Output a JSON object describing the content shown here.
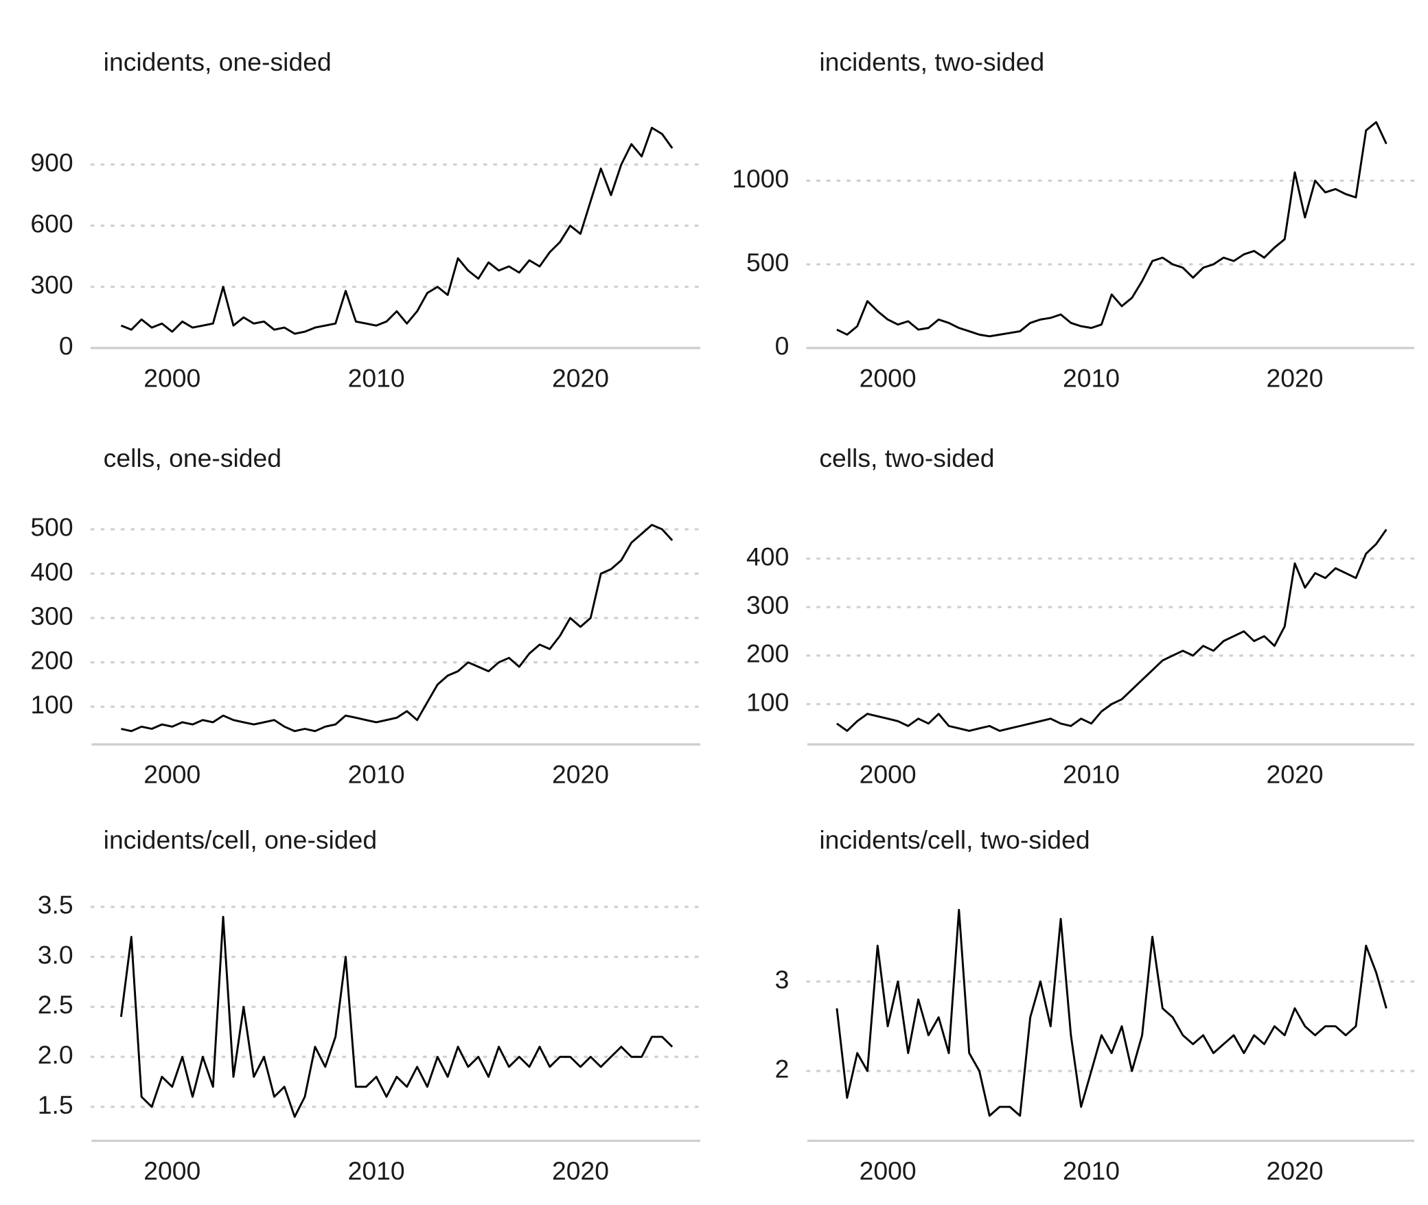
{
  "chart_data": [
    {
      "type": "line",
      "title": "incidents, one-sided",
      "color": "#000000",
      "grid": true,
      "x": [
        1997.5,
        1998,
        1998.5,
        1999,
        1999.5,
        2000,
        2000.5,
        2001,
        2001.5,
        2002,
        2002.5,
        2003,
        2003.5,
        2004,
        2004.5,
        2005,
        2005.5,
        2006,
        2006.5,
        2007,
        2007.5,
        2008,
        2008.5,
        2009,
        2009.5,
        2010,
        2010.5,
        2011,
        2011.5,
        2012,
        2012.5,
        2013,
        2013.5,
        2014,
        2014.5,
        2015,
        2015.5,
        2016,
        2016.5,
        2017,
        2017.5,
        2018,
        2018.5,
        2019,
        2019.5,
        2020,
        2020.5,
        2021,
        2021.5,
        2022,
        2022.5,
        2023,
        2023.5,
        2024,
        2024.5
      ],
      "values": [
        110,
        90,
        140,
        100,
        120,
        80,
        130,
        100,
        110,
        120,
        300,
        110,
        150,
        120,
        130,
        90,
        100,
        70,
        80,
        100,
        110,
        120,
        280,
        130,
        120,
        110,
        130,
        180,
        120,
        180,
        270,
        300,
        260,
        440,
        380,
        340,
        420,
        380,
        400,
        370,
        430,
        400,
        470,
        520,
        600,
        560,
        720,
        880,
        750,
        900,
        1000,
        940,
        1080,
        1050,
        980
      ],
      "xlim": [
        1996.05,
        2025.87
      ],
      "xticks": [
        2000,
        2010,
        2020
      ],
      "ylim": [
        0,
        1190
      ],
      "yticks": [
        0,
        300,
        600,
        900
      ]
    },
    {
      "type": "line",
      "title": "incidents, two-sided",
      "color": "#000000",
      "grid": true,
      "x": [
        1997.5,
        1998,
        1998.5,
        1999,
        1999.5,
        2000,
        2000.5,
        2001,
        2001.5,
        2002,
        2002.5,
        2003,
        2003.5,
        2004,
        2004.5,
        2005,
        2005.5,
        2006,
        2006.5,
        2007,
        2007.5,
        2008,
        2008.5,
        2009,
        2009.5,
        2010,
        2010.5,
        2011,
        2011.5,
        2012,
        2012.5,
        2013,
        2013.5,
        2014,
        2014.5,
        2015,
        2015.5,
        2016,
        2016.5,
        2017,
        2017.5,
        2018,
        2018.5,
        2019,
        2019.5,
        2020,
        2020.5,
        2021,
        2021.5,
        2022,
        2022.5,
        2023,
        2023.5,
        2024,
        2024.5
      ],
      "values": [
        110,
        80,
        130,
        280,
        220,
        170,
        140,
        160,
        110,
        120,
        170,
        150,
        120,
        100,
        80,
        70,
        80,
        90,
        100,
        150,
        170,
        180,
        200,
        150,
        130,
        120,
        140,
        320,
        250,
        300,
        400,
        520,
        540,
        500,
        480,
        420,
        480,
        500,
        540,
        520,
        560,
        580,
        540,
        600,
        650,
        1050,
        780,
        1000,
        930,
        950,
        920,
        900,
        1300,
        1350,
        1220
      ],
      "xlim": [
        1996.05,
        2025.87
      ],
      "xticks": [
        2000,
        2010,
        2020
      ],
      "ylim": [
        0,
        1450
      ],
      "yticks": [
        0,
        500,
        1000
      ]
    },
    {
      "type": "line",
      "title": "cells, one-sided",
      "color": "#000000",
      "grid": true,
      "x": [
        1997.5,
        1998,
        1998.5,
        1999,
        1999.5,
        2000,
        2000.5,
        2001,
        2001.5,
        2002,
        2002.5,
        2003,
        2003.5,
        2004,
        2004.5,
        2005,
        2005.5,
        2006,
        2006.5,
        2007,
        2007.5,
        2008,
        2008.5,
        2009,
        2009.5,
        2010,
        2010.5,
        2011,
        2011.5,
        2012,
        2012.5,
        2013,
        2013.5,
        2014,
        2014.5,
        2015,
        2015.5,
        2016,
        2016.5,
        2017,
        2017.5,
        2018,
        2018.5,
        2019,
        2019.5,
        2020,
        2020.5,
        2021,
        2021.5,
        2022,
        2022.5,
        2023,
        2023.5,
        2024,
        2024.5
      ],
      "values": [
        50,
        45,
        55,
        50,
        60,
        55,
        65,
        60,
        70,
        65,
        80,
        70,
        65,
        60,
        65,
        70,
        55,
        45,
        50,
        45,
        55,
        60,
        80,
        75,
        70,
        65,
        70,
        75,
        90,
        70,
        110,
        150,
        170,
        180,
        200,
        190,
        180,
        200,
        210,
        190,
        220,
        240,
        230,
        260,
        300,
        280,
        300,
        400,
        410,
        430,
        470,
        490,
        510,
        500,
        475
      ],
      "xlim": [
        1996.05,
        2025.87
      ],
      "xticks": [
        2000,
        2010,
        2020
      ],
      "ylim": [
        15,
        562
      ],
      "yticks": [
        100,
        200,
        300,
        400,
        500
      ]
    },
    {
      "type": "line",
      "title": "cells, two-sided",
      "color": "#000000",
      "grid": true,
      "x": [
        1997.5,
        1998,
        1998.5,
        1999,
        1999.5,
        2000,
        2000.5,
        2001,
        2001.5,
        2002,
        2002.5,
        2003,
        2003.5,
        2004,
        2004.5,
        2005,
        2005.5,
        2006,
        2006.5,
        2007,
        2007.5,
        2008,
        2008.5,
        2009,
        2009.5,
        2010,
        2010.5,
        2011,
        2011.5,
        2012,
        2012.5,
        2013,
        2013.5,
        2014,
        2014.5,
        2015,
        2015.5,
        2016,
        2016.5,
        2017,
        2017.5,
        2018,
        2018.5,
        2019,
        2019.5,
        2020,
        2020.5,
        2021,
        2021.5,
        2022,
        2022.5,
        2023,
        2023.5,
        2024,
        2024.5
      ],
      "values": [
        60,
        45,
        65,
        80,
        75,
        70,
        65,
        55,
        70,
        60,
        80,
        55,
        50,
        45,
        50,
        55,
        45,
        50,
        55,
        60,
        65,
        70,
        60,
        55,
        70,
        60,
        85,
        100,
        110,
        130,
        150,
        170,
        190,
        200,
        210,
        200,
        220,
        210,
        230,
        240,
        250,
        230,
        240,
        220,
        260,
        390,
        340,
        370,
        360,
        380,
        370,
        360,
        410,
        430,
        460
      ],
      "xlim": [
        1996.05,
        2025.87
      ],
      "xticks": [
        2000,
        2010,
        2020
      ],
      "ylim": [
        17,
        517
      ],
      "yticks": [
        100,
        200,
        300,
        400
      ]
    },
    {
      "type": "line",
      "title": "incidents/cell, one-sided",
      "color": "#000000",
      "grid": true,
      "x": [
        1997.5,
        1998,
        1998.5,
        1999,
        1999.5,
        2000,
        2000.5,
        2001,
        2001.5,
        2002,
        2002.5,
        2003,
        2003.5,
        2004,
        2004.5,
        2005,
        2005.5,
        2006,
        2006.5,
        2007,
        2007.5,
        2008,
        2008.5,
        2009,
        2009.5,
        2010,
        2010.5,
        2011,
        2011.5,
        2012,
        2012.5,
        2013,
        2013.5,
        2014,
        2014.5,
        2015,
        2015.5,
        2016,
        2016.5,
        2017,
        2017.5,
        2018,
        2018.5,
        2019,
        2019.5,
        2020,
        2020.5,
        2021,
        2021.5,
        2022,
        2022.5,
        2023,
        2023.5,
        2024,
        2024.5
      ],
      "values": [
        2.4,
        3.2,
        1.6,
        1.5,
        1.8,
        1.7,
        2.0,
        1.6,
        2.0,
        1.7,
        3.4,
        1.8,
        2.5,
        1.8,
        2.0,
        1.6,
        1.7,
        1.4,
        1.6,
        2.1,
        1.9,
        2.2,
        3.0,
        1.7,
        1.7,
        1.8,
        1.6,
        1.8,
        1.7,
        1.9,
        1.7,
        2.0,
        1.8,
        2.1,
        1.9,
        2.0,
        1.8,
        2.1,
        1.9,
        2.0,
        1.9,
        2.1,
        1.9,
        2.0,
        2.0,
        1.9,
        2.0,
        1.9,
        2.0,
        2.1,
        2.0,
        2.0,
        2.2,
        2.2,
        2.1
      ],
      "xlim": [
        1996.05,
        2025.87
      ],
      "xticks": [
        2000,
        2010,
        2020
      ],
      "ylim": [
        1.16,
        3.55
      ],
      "yticks": [
        1.5,
        {
          "value": 2,
          "label": "2.0"
        },
        2.5,
        {
          "value": 3,
          "label": "3.0"
        },
        3.5
      ]
    },
    {
      "type": "line",
      "title": "incidents/cell, two-sided",
      "color": "#000000",
      "grid": true,
      "x": [
        1997.5,
        1998,
        1998.5,
        1999,
        1999.5,
        2000,
        2000.5,
        2001,
        2001.5,
        2002,
        2002.5,
        2003,
        2003.5,
        2004,
        2004.5,
        2005,
        2005.5,
        2006,
        2006.5,
        2007,
        2007.5,
        2008,
        2008.5,
        2009,
        2009.5,
        2010,
        2010.5,
        2011,
        2011.5,
        2012,
        2012.5,
        2013,
        2013.5,
        2014,
        2014.5,
        2015,
        2015.5,
        2016,
        2016.5,
        2017,
        2017.5,
        2018,
        2018.5,
        2019,
        2019.5,
        2020,
        2020.5,
        2021,
        2021.5,
        2022,
        2022.5,
        2023,
        2023.5,
        2024,
        2024.5
      ],
      "values": [
        2.7,
        1.7,
        2.2,
        2.0,
        3.4,
        2.5,
        3.0,
        2.2,
        2.8,
        2.4,
        2.6,
        2.2,
        3.8,
        2.2,
        2.0,
        1.5,
        1.6,
        1.6,
        1.5,
        2.6,
        3.0,
        2.5,
        3.7,
        2.4,
        1.6,
        2.0,
        2.4,
        2.2,
        2.5,
        2.0,
        2.4,
        3.5,
        2.7,
        2.6,
        2.4,
        2.3,
        2.4,
        2.2,
        2.3,
        2.4,
        2.2,
        2.4,
        2.3,
        2.5,
        2.4,
        2.7,
        2.5,
        2.4,
        2.5,
        2.5,
        2.4,
        2.5,
        3.4,
        3.1,
        2.7
      ],
      "xlim": [
        1996.05,
        2025.87
      ],
      "xticks": [
        2000,
        2010,
        2020
      ],
      "ylim": [
        1.22,
        3.89
      ],
      "yticks": [
        2,
        3
      ]
    }
  ]
}
